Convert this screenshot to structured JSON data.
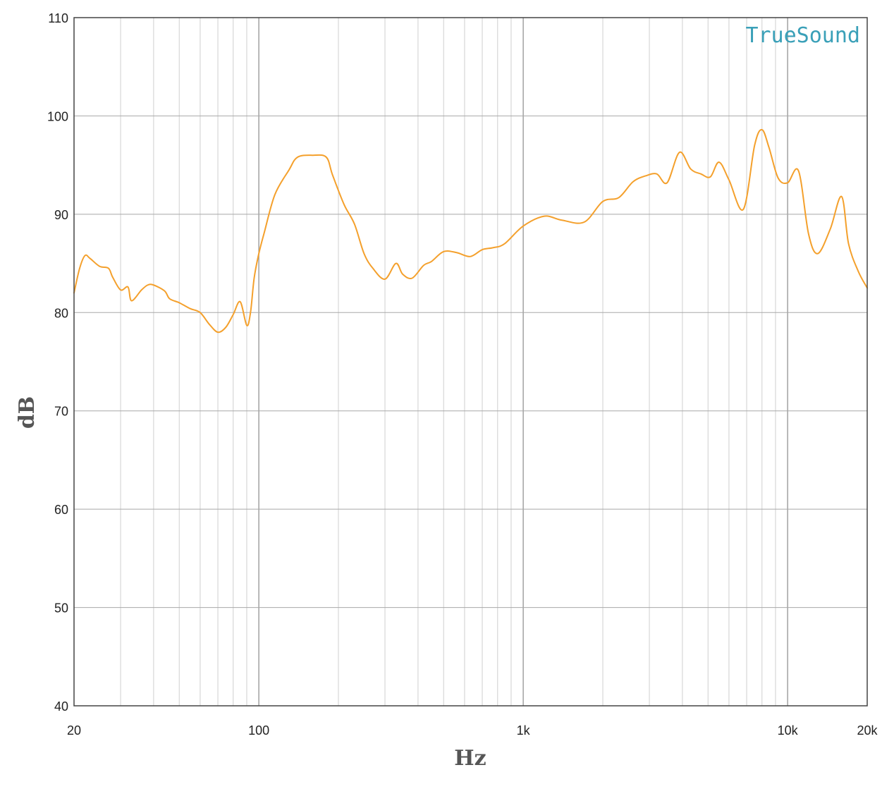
{
  "chart_data": {
    "type": "line",
    "title": "",
    "brand_label": "TrueSound",
    "xlabel": "Hz",
    "ylabel": "dB",
    "x_scale": "log",
    "xlim": [
      20,
      20000
    ],
    "ylim": [
      40,
      110
    ],
    "grid": true,
    "y_ticks": [
      {
        "value": 110,
        "label": "110"
      },
      {
        "value": 100,
        "label": "100"
      },
      {
        "value": 90,
        "label": "90"
      },
      {
        "value": 80,
        "label": "80"
      },
      {
        "value": 70,
        "label": "70"
      },
      {
        "value": 60,
        "label": "60"
      },
      {
        "value": 50,
        "label": "50"
      },
      {
        "value": 40,
        "label": "40"
      }
    ],
    "x_ticks": [
      {
        "value": 20,
        "label": "20"
      },
      {
        "value": 100,
        "label": "100"
      },
      {
        "value": 1000,
        "label": "1k"
      },
      {
        "value": 10000,
        "label": "10k"
      },
      {
        "value": 20000,
        "label": "20k"
      }
    ],
    "series": [
      {
        "color": "#f4a02c",
        "x": [
          20,
          21,
          22,
          23,
          25,
          27,
          28,
          30,
          32,
          33,
          36,
          38,
          40,
          44,
          46,
          50,
          55,
          60,
          65,
          70,
          75,
          80,
          85,
          90,
          93,
          96,
          100,
          105,
          115,
          130,
          140,
          160,
          180,
          190,
          210,
          230,
          250,
          270,
          300,
          330,
          350,
          380,
          420,
          450,
          500,
          560,
          630,
          700,
          770,
          850,
          1000,
          1200,
          1400,
          1700,
          2000,
          2300,
          2600,
          2900,
          3200,
          3500,
          3900,
          4300,
          4700,
          5100,
          5500,
          6000,
          6800,
          7500,
          8000,
          8500,
          9200,
          10000,
          11000,
          12000,
          13000,
          14500,
          16000,
          17000,
          18500,
          20000
        ],
        "values": [
          82,
          84.5,
          85.8,
          85.5,
          84.7,
          84.5,
          83.6,
          82.3,
          82.6,
          81.2,
          82.3,
          82.8,
          82.8,
          82.2,
          81.4,
          81.0,
          80.4,
          80.0,
          78.8,
          78.0,
          78.5,
          79.8,
          81.1,
          78.7,
          80.0,
          83.5,
          86.0,
          88.2,
          92.0,
          94.5,
          95.8,
          96.0,
          95.8,
          94.0,
          91.0,
          89.0,
          86.0,
          84.5,
          83.4,
          85.0,
          83.9,
          83.5,
          84.8,
          85.2,
          86.2,
          86.1,
          85.7,
          86.4,
          86.6,
          87.0,
          88.8,
          89.8,
          89.4,
          89.2,
          91.3,
          91.7,
          93.3,
          93.9,
          94.1,
          93.2,
          96.3,
          94.6,
          94.1,
          93.8,
          95.3,
          93.5,
          90.5,
          97.0,
          98.6,
          96.8,
          93.7,
          93.2,
          94.4,
          88.0,
          86.0,
          88.5,
          91.8,
          87.0,
          84.2,
          82.5
        ]
      }
    ]
  }
}
